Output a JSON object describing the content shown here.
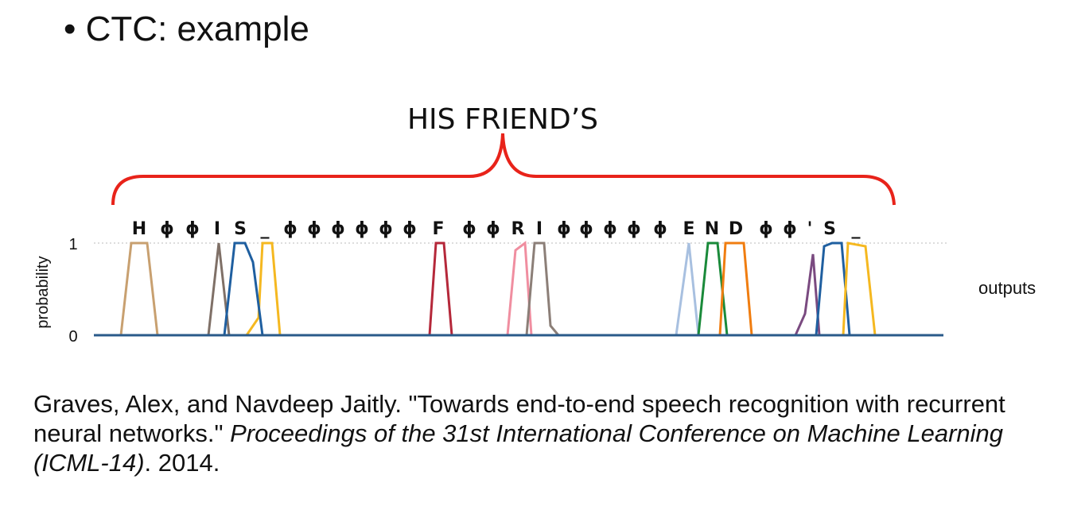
{
  "slide": {
    "bullet": "CTC: example",
    "figure": {
      "transcript": "HIS FRIEND’S",
      "tokens": [
        "H",
        "ϕ",
        "ϕ",
        "I",
        "S",
        "_",
        "ϕ",
        "ϕ",
        "ϕ",
        "ϕ",
        "ϕ",
        "ϕ",
        "F",
        "ϕ",
        "ϕ",
        "R",
        "I",
        "ϕ",
        "ϕ",
        "ϕ",
        "ϕ",
        "ϕ",
        "E",
        "N",
        "D",
        "ϕ",
        "ϕ",
        "'",
        "S",
        "_"
      ],
      "y_axis_label": "probability",
      "y_ticks": [
        1,
        0
      ],
      "side_label": "outputs"
    },
    "citation": {
      "authors_title": "Graves, Alex, and Navdeep Jaitly. \"Towards end-to-end speech recognition with recurrent neural networks.\" ",
      "venue": "Proceedings of the 31st International Conference on Machine Learning (ICML-14)",
      "year": ". 2014."
    }
  }
}
